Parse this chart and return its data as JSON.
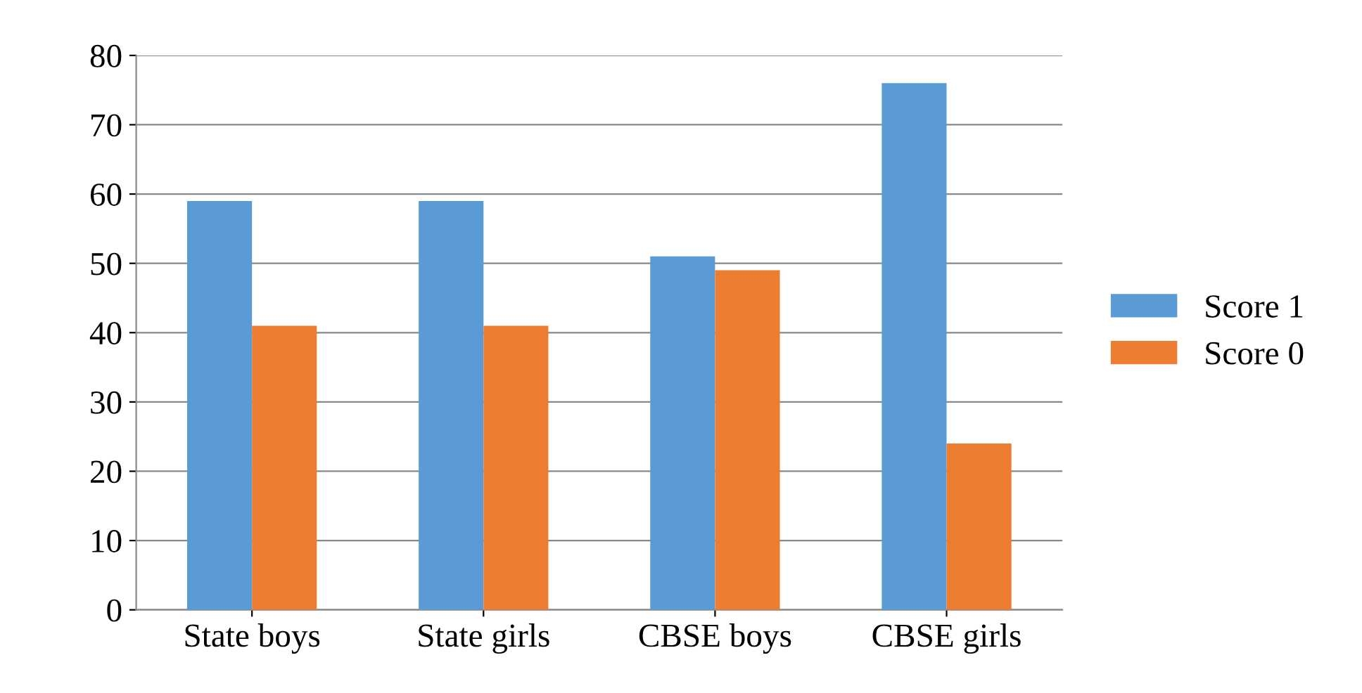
{
  "chart_data": {
    "type": "bar",
    "categories": [
      "State boys",
      "State girls",
      "CBSE boys",
      "CBSE girls"
    ],
    "series": [
      {
        "name": "Score 1",
        "color": "#5b9bd5",
        "values": [
          59,
          59,
          51,
          76
        ]
      },
      {
        "name": "Score 0",
        "color": "#ed7d31",
        "values": [
          41,
          41,
          49,
          24
        ]
      }
    ],
    "ylim": [
      0,
      80
    ],
    "yticks": [
      0,
      10,
      20,
      30,
      40,
      50,
      60,
      70,
      80
    ],
    "grid": "y",
    "legend": "right"
  }
}
